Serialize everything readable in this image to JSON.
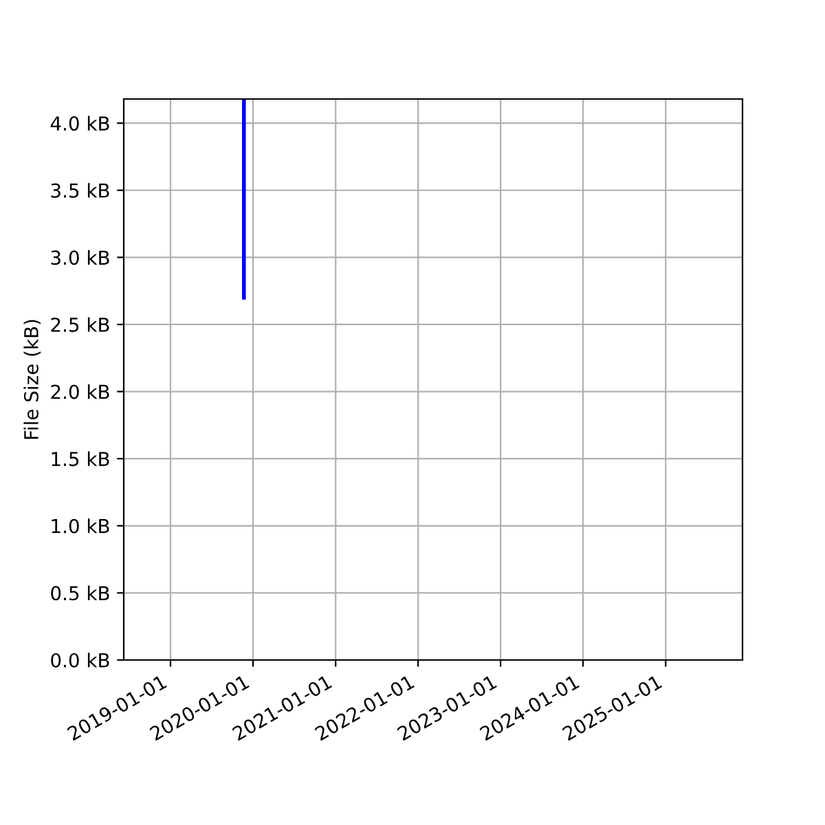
{
  "chart_data": {
    "type": "line",
    "ylabel": "File Size (kB)",
    "x": [
      "2019-11-22",
      "2019-11-22"
    ],
    "series": [
      {
        "color": "#0000ff",
        "values": [
          2.7,
          4.18
        ]
      }
    ],
    "xlim": [
      "2018-06-08",
      "2025-12-07"
    ],
    "ylim": [
      0,
      4.18
    ],
    "xticks": [
      "2019-01-01",
      "2020-01-01",
      "2021-01-01",
      "2022-01-01",
      "2023-01-01",
      "2024-01-01",
      "2025-01-01"
    ],
    "yticks": [
      {
        "value": 0,
        "label": "0.0 kB"
      },
      {
        "value": 0.5,
        "label": "0.5 kB"
      },
      {
        "value": 1,
        "label": "1.0 kB"
      },
      {
        "value": 1.5,
        "label": "1.5 kB"
      },
      {
        "value": 2,
        "label": "2.0 kB"
      },
      {
        "value": 2.5,
        "label": "2.5 kB"
      },
      {
        "value": 3,
        "label": "3.0 kB"
      },
      {
        "value": 3.5,
        "label": "3.5 kB"
      },
      {
        "value": 4,
        "label": "4.0 kB"
      }
    ],
    "grid": true,
    "line_style": "solid"
  }
}
